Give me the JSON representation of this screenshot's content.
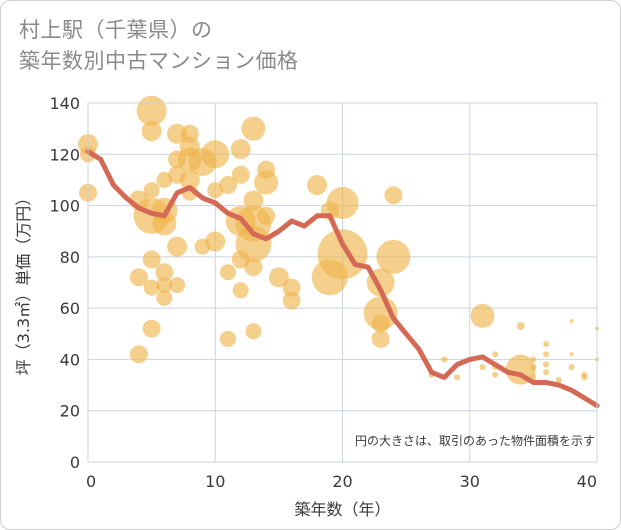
{
  "title": "村上駅（千葉県）の\n築年数別中古マンション価格",
  "note": "円の大きさは、取引のあった物件面積を示す",
  "colors": {
    "bubble": "#f0b64f",
    "line": "#d46a55",
    "grid": "#c9d3df",
    "plot_bg": "#ffffff"
  },
  "chart_data": {
    "type": "scatter",
    "xlabel": "築年数（年）",
    "ylabel": "坪（3.3㎡）単価（万円）",
    "xlim": [
      0,
      40
    ],
    "ylim": [
      0,
      140
    ],
    "xticks": [
      "0",
      "10",
      "20",
      "30",
      "40"
    ],
    "yticks": [
      "0",
      "20",
      "40",
      "60",
      "80",
      "100",
      "120",
      "140"
    ],
    "bubbles": [
      {
        "x": 0,
        "y": 124,
        "s": 10
      },
      {
        "x": 0,
        "y": 120,
        "s": 8
      },
      {
        "x": 0,
        "y": 105,
        "s": 9
      },
      {
        "x": 4,
        "y": 72,
        "s": 9
      },
      {
        "x": 4,
        "y": 42,
        "s": 9
      },
      {
        "x": 4,
        "y": 102,
        "s": 10
      },
      {
        "x": 5,
        "y": 137,
        "s": 15
      },
      {
        "x": 5,
        "y": 129,
        "s": 10
      },
      {
        "x": 5,
        "y": 106,
        "s": 8
      },
      {
        "x": 5,
        "y": 96,
        "s": 18
      },
      {
        "x": 5,
        "y": 79,
        "s": 9
      },
      {
        "x": 5,
        "y": 68,
        "s": 8
      },
      {
        "x": 5,
        "y": 52,
        "s": 9
      },
      {
        "x": 6,
        "y": 98,
        "s": 13
      },
      {
        "x": 6,
        "y": 93,
        "s": 12
      },
      {
        "x": 6,
        "y": 110,
        "s": 8
      },
      {
        "x": 6,
        "y": 74,
        "s": 9
      },
      {
        "x": 6,
        "y": 69,
        "s": 8
      },
      {
        "x": 6,
        "y": 64,
        "s": 8
      },
      {
        "x": 7,
        "y": 128,
        "s": 10
      },
      {
        "x": 7,
        "y": 118,
        "s": 9
      },
      {
        "x": 7,
        "y": 112,
        "s": 9
      },
      {
        "x": 7,
        "y": 84,
        "s": 10
      },
      {
        "x": 7,
        "y": 69,
        "s": 8
      },
      {
        "x": 8,
        "y": 128,
        "s": 9
      },
      {
        "x": 8,
        "y": 123,
        "s": 10
      },
      {
        "x": 8,
        "y": 118,
        "s": 12
      },
      {
        "x": 8,
        "y": 110,
        "s": 10
      },
      {
        "x": 8,
        "y": 105,
        "s": 8
      },
      {
        "x": 9,
        "y": 117,
        "s": 14
      },
      {
        "x": 9,
        "y": 84,
        "s": 8
      },
      {
        "x": 10,
        "y": 120,
        "s": 14
      },
      {
        "x": 10,
        "y": 106,
        "s": 8
      },
      {
        "x": 10,
        "y": 86,
        "s": 10
      },
      {
        "x": 11,
        "y": 108,
        "s": 9
      },
      {
        "x": 11,
        "y": 74,
        "s": 8
      },
      {
        "x": 11,
        "y": 48,
        "s": 8
      },
      {
        "x": 12,
        "y": 122,
        "s": 10
      },
      {
        "x": 12,
        "y": 112,
        "s": 9
      },
      {
        "x": 12,
        "y": 94,
        "s": 15
      },
      {
        "x": 12,
        "y": 79,
        "s": 9
      },
      {
        "x": 12,
        "y": 67,
        "s": 8
      },
      {
        "x": 13,
        "y": 130,
        "s": 12
      },
      {
        "x": 13,
        "y": 102,
        "s": 10
      },
      {
        "x": 13,
        "y": 93,
        "s": 18
      },
      {
        "x": 13,
        "y": 85,
        "s": 18
      },
      {
        "x": 13,
        "y": 76,
        "s": 9
      },
      {
        "x": 13,
        "y": 51,
        "s": 8
      },
      {
        "x": 14,
        "y": 114,
        "s": 9
      },
      {
        "x": 14,
        "y": 109,
        "s": 12
      },
      {
        "x": 14,
        "y": 96,
        "s": 9
      },
      {
        "x": 15,
        "y": 72,
        "s": 10
      },
      {
        "x": 16,
        "y": 68,
        "s": 9
      },
      {
        "x": 16,
        "y": 63,
        "s": 9
      },
      {
        "x": 18,
        "y": 108,
        "s": 10
      },
      {
        "x": 19,
        "y": 98,
        "s": 9
      },
      {
        "x": 19,
        "y": 72,
        "s": 18
      },
      {
        "x": 20,
        "y": 101,
        "s": 16
      },
      {
        "x": 20,
        "y": 81,
        "s": 25
      },
      {
        "x": 23,
        "y": 70,
        "s": 14
      },
      {
        "x": 23,
        "y": 58,
        "s": 17
      },
      {
        "x": 23,
        "y": 54,
        "s": 9
      },
      {
        "x": 23,
        "y": 48,
        "s": 9
      },
      {
        "x": 24,
        "y": 104,
        "s": 9
      },
      {
        "x": 24,
        "y": 80,
        "s": 17
      },
      {
        "x": 27,
        "y": 34,
        "s": 3
      },
      {
        "x": 28,
        "y": 40,
        "s": 3
      },
      {
        "x": 29,
        "y": 33,
        "s": 3
      },
      {
        "x": 31,
        "y": 57,
        "s": 12
      },
      {
        "x": 31,
        "y": 37,
        "s": 3
      },
      {
        "x": 32,
        "y": 42,
        "s": 3
      },
      {
        "x": 32,
        "y": 37,
        "s": 3
      },
      {
        "x": 32,
        "y": 34,
        "s": 3
      },
      {
        "x": 34,
        "y": 53,
        "s": 4
      },
      {
        "x": 34,
        "y": 36,
        "s": 15
      },
      {
        "x": 35,
        "y": 40,
        "s": 3
      },
      {
        "x": 35,
        "y": 37,
        "s": 3
      },
      {
        "x": 35,
        "y": 33,
        "s": 3
      },
      {
        "x": 36,
        "y": 46,
        "s": 3
      },
      {
        "x": 36,
        "y": 42,
        "s": 3
      },
      {
        "x": 36,
        "y": 38,
        "s": 3
      },
      {
        "x": 36,
        "y": 35,
        "s": 3
      },
      {
        "x": 37,
        "y": 32,
        "s": 3
      },
      {
        "x": 38,
        "y": 55,
        "s": 2
      },
      {
        "x": 38,
        "y": 42,
        "s": 2
      },
      {
        "x": 38,
        "y": 37,
        "s": 3
      },
      {
        "x": 39,
        "y": 34,
        "s": 3
      },
      {
        "x": 39,
        "y": 33,
        "s": 3
      },
      {
        "x": 40,
        "y": 52,
        "s": 2
      },
      {
        "x": 40,
        "y": 40,
        "s": 2
      }
    ],
    "series": [
      {
        "x": [
          0,
          1,
          2,
          3,
          4,
          5,
          6,
          7,
          8,
          9,
          10,
          11,
          12,
          13,
          14,
          15,
          16,
          17,
          18,
          19,
          20,
          21,
          22,
          23,
          24,
          25,
          26,
          27,
          28,
          29,
          30,
          31,
          32,
          33,
          34,
          35,
          36,
          37,
          38,
          39,
          40
        ],
        "y": [
          121,
          118,
          108,
          103,
          99,
          97,
          96,
          105,
          107,
          103,
          101,
          97,
          95,
          89,
          87,
          90,
          94,
          92,
          96,
          96,
          85,
          77,
          76,
          67,
          56,
          50,
          44,
          35,
          33,
          38,
          40,
          41,
          38,
          35,
          34,
          31,
          31,
          30,
          28,
          25,
          22
        ]
      }
    ]
  }
}
